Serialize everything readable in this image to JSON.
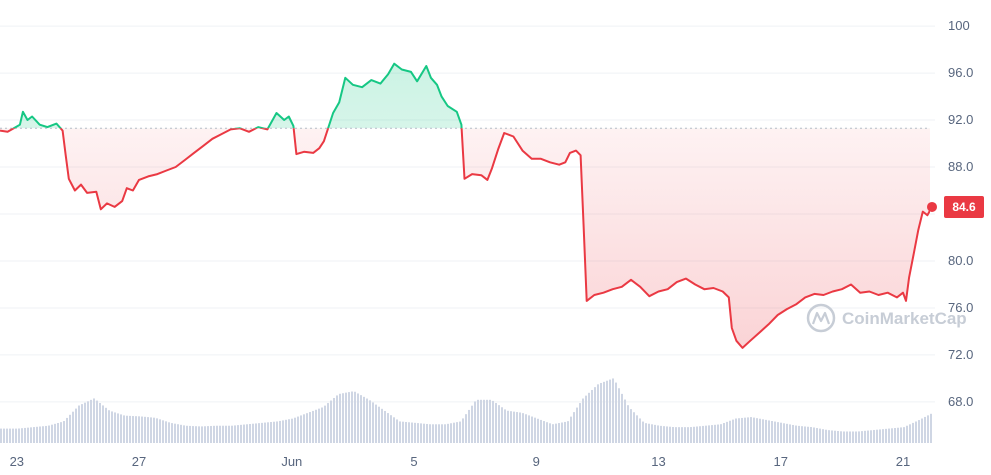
{
  "chart_data": {
    "type": "line",
    "y_ticks": [
      "100",
      "96.0",
      "92.0",
      "88.0",
      "84.0",
      "80.0",
      "76.0",
      "72.0",
      "68.0"
    ],
    "y_tick_values": [
      100,
      96,
      92,
      88,
      84,
      80,
      76,
      72,
      68
    ],
    "ylim": [
      64.5,
      101.2
    ],
    "x_ticks": [
      "23",
      "27",
      "Jun",
      "5",
      "9",
      "13",
      "17",
      "21"
    ],
    "x_tick_days": [
      0,
      4,
      9,
      13,
      17,
      21,
      25,
      29
    ],
    "xlim_days": [
      -0.55,
      29.95
    ],
    "baseline_value": 91.3,
    "current_value": "84.6",
    "colors": {
      "up": "#16c784",
      "down": "#ea3943",
      "badge": "#ea3943"
    },
    "grid": true,
    "series": [
      {
        "values": [
          [
            -0.55,
            91.1
          ],
          [
            -0.3,
            91.0
          ],
          [
            -0.1,
            91.3
          ],
          [
            0.1,
            91.6
          ],
          [
            0.2,
            92.7
          ],
          [
            0.35,
            92.0
          ],
          [
            0.5,
            92.3
          ],
          [
            0.75,
            91.6
          ],
          [
            1.0,
            91.4
          ],
          [
            1.3,
            91.7
          ],
          [
            1.5,
            91.1
          ],
          [
            1.6,
            89.0
          ],
          [
            1.7,
            87.0
          ],
          [
            1.9,
            86.0
          ],
          [
            2.1,
            86.5
          ],
          [
            2.3,
            85.8
          ],
          [
            2.6,
            85.9
          ],
          [
            2.75,
            84.4
          ],
          [
            2.95,
            84.9
          ],
          [
            3.2,
            84.6
          ],
          [
            3.45,
            85.1
          ],
          [
            3.6,
            86.2
          ],
          [
            3.8,
            86.0
          ],
          [
            4.0,
            86.9
          ],
          [
            4.3,
            87.2
          ],
          [
            4.6,
            87.4
          ],
          [
            4.9,
            87.7
          ],
          [
            5.2,
            88.0
          ],
          [
            5.5,
            88.6
          ],
          [
            5.8,
            89.2
          ],
          [
            6.1,
            89.8
          ],
          [
            6.4,
            90.4
          ],
          [
            6.7,
            90.8
          ],
          [
            7.0,
            91.2
          ],
          [
            7.3,
            91.3
          ],
          [
            7.6,
            91.0
          ],
          [
            7.9,
            91.4
          ],
          [
            8.2,
            91.2
          ],
          [
            8.5,
            92.6
          ],
          [
            8.75,
            92.0
          ],
          [
            8.9,
            92.3
          ],
          [
            9.05,
            91.5
          ],
          [
            9.15,
            89.1
          ],
          [
            9.4,
            89.3
          ],
          [
            9.7,
            89.2
          ],
          [
            9.9,
            89.6
          ],
          [
            10.05,
            90.2
          ],
          [
            10.2,
            91.4
          ],
          [
            10.35,
            92.6
          ],
          [
            10.55,
            93.5
          ],
          [
            10.75,
            95.6
          ],
          [
            11.0,
            95.0
          ],
          [
            11.3,
            94.8
          ],
          [
            11.6,
            95.4
          ],
          [
            11.9,
            95.1
          ],
          [
            12.15,
            95.9
          ],
          [
            12.35,
            96.8
          ],
          [
            12.6,
            96.3
          ],
          [
            12.9,
            96.1
          ],
          [
            13.1,
            95.3
          ],
          [
            13.4,
            96.6
          ],
          [
            13.55,
            95.6
          ],
          [
            13.75,
            95.0
          ],
          [
            13.9,
            94.0
          ],
          [
            14.1,
            93.2
          ],
          [
            14.4,
            92.7
          ],
          [
            14.55,
            91.6
          ],
          [
            14.65,
            87.0
          ],
          [
            14.9,
            87.4
          ],
          [
            15.2,
            87.3
          ],
          [
            15.4,
            86.9
          ],
          [
            15.55,
            87.9
          ],
          [
            15.75,
            89.5
          ],
          [
            15.95,
            90.9
          ],
          [
            16.25,
            90.6
          ],
          [
            16.55,
            89.4
          ],
          [
            16.85,
            88.7
          ],
          [
            17.15,
            88.7
          ],
          [
            17.45,
            88.4
          ],
          [
            17.75,
            88.2
          ],
          [
            17.95,
            88.4
          ],
          [
            18.1,
            89.2
          ],
          [
            18.3,
            89.4
          ],
          [
            18.45,
            89.0
          ],
          [
            18.55,
            83.0
          ],
          [
            18.65,
            76.6
          ],
          [
            18.9,
            77.1
          ],
          [
            19.2,
            77.3
          ],
          [
            19.5,
            77.6
          ],
          [
            19.8,
            77.8
          ],
          [
            20.1,
            78.4
          ],
          [
            20.4,
            77.8
          ],
          [
            20.7,
            77.0
          ],
          [
            21.0,
            77.4
          ],
          [
            21.3,
            77.6
          ],
          [
            21.6,
            78.2
          ],
          [
            21.9,
            78.5
          ],
          [
            22.2,
            78.0
          ],
          [
            22.5,
            77.6
          ],
          [
            22.8,
            77.7
          ],
          [
            23.1,
            77.4
          ],
          [
            23.3,
            76.9
          ],
          [
            23.4,
            74.3
          ],
          [
            23.55,
            73.2
          ],
          [
            23.75,
            72.6
          ],
          [
            24.0,
            73.2
          ],
          [
            24.3,
            73.9
          ],
          [
            24.6,
            74.6
          ],
          [
            24.9,
            75.4
          ],
          [
            25.2,
            75.9
          ],
          [
            25.5,
            76.3
          ],
          [
            25.8,
            76.9
          ],
          [
            26.1,
            77.2
          ],
          [
            26.4,
            77.1
          ],
          [
            26.7,
            77.4
          ],
          [
            27.0,
            77.6
          ],
          [
            27.3,
            78.0
          ],
          [
            27.6,
            77.3
          ],
          [
            27.9,
            77.4
          ],
          [
            28.2,
            77.1
          ],
          [
            28.5,
            77.3
          ],
          [
            28.8,
            76.9
          ],
          [
            29.0,
            77.3
          ],
          [
            29.1,
            76.6
          ],
          [
            29.2,
            78.6
          ],
          [
            29.35,
            80.6
          ],
          [
            29.5,
            82.6
          ],
          [
            29.65,
            84.2
          ],
          [
            29.8,
            83.9
          ],
          [
            29.95,
            84.6
          ]
        ]
      }
    ],
    "volume": [
      [
        -0.55,
        0.2
      ],
      [
        0.0,
        0.2
      ],
      [
        0.5,
        0.22
      ],
      [
        1.0,
        0.24
      ],
      [
        1.5,
        0.3
      ],
      [
        2.0,
        0.52
      ],
      [
        2.5,
        0.62
      ],
      [
        3.0,
        0.45
      ],
      [
        3.5,
        0.38
      ],
      [
        4.0,
        0.37
      ],
      [
        4.5,
        0.35
      ],
      [
        5.0,
        0.28
      ],
      [
        5.5,
        0.24
      ],
      [
        6.0,
        0.23
      ],
      [
        6.5,
        0.24
      ],
      [
        7.0,
        0.24
      ],
      [
        7.5,
        0.26
      ],
      [
        8.0,
        0.28
      ],
      [
        8.5,
        0.3
      ],
      [
        9.0,
        0.34
      ],
      [
        9.5,
        0.42
      ],
      [
        10.0,
        0.5
      ],
      [
        10.5,
        0.68
      ],
      [
        11.0,
        0.72
      ],
      [
        11.5,
        0.6
      ],
      [
        12.0,
        0.45
      ],
      [
        12.5,
        0.3
      ],
      [
        13.0,
        0.28
      ],
      [
        13.5,
        0.26
      ],
      [
        14.0,
        0.26
      ],
      [
        14.5,
        0.3
      ],
      [
        15.0,
        0.6
      ],
      [
        15.5,
        0.6
      ],
      [
        16.0,
        0.45
      ],
      [
        16.5,
        0.42
      ],
      [
        17.0,
        0.34
      ],
      [
        17.5,
        0.26
      ],
      [
        18.0,
        0.3
      ],
      [
        18.5,
        0.62
      ],
      [
        19.0,
        0.82
      ],
      [
        19.5,
        0.9
      ],
      [
        20.0,
        0.5
      ],
      [
        20.5,
        0.28
      ],
      [
        21.0,
        0.24
      ],
      [
        21.5,
        0.22
      ],
      [
        22.0,
        0.22
      ],
      [
        22.5,
        0.24
      ],
      [
        23.0,
        0.26
      ],
      [
        23.5,
        0.34
      ],
      [
        24.0,
        0.36
      ],
      [
        24.5,
        0.32
      ],
      [
        25.0,
        0.28
      ],
      [
        25.5,
        0.24
      ],
      [
        26.0,
        0.22
      ],
      [
        26.5,
        0.18
      ],
      [
        27.0,
        0.16
      ],
      [
        27.5,
        0.16
      ],
      [
        28.0,
        0.18
      ],
      [
        28.5,
        0.2
      ],
      [
        29.0,
        0.22
      ],
      [
        29.5,
        0.32
      ],
      [
        29.95,
        0.42
      ]
    ],
    "watermark": "CoinMarketCap"
  }
}
